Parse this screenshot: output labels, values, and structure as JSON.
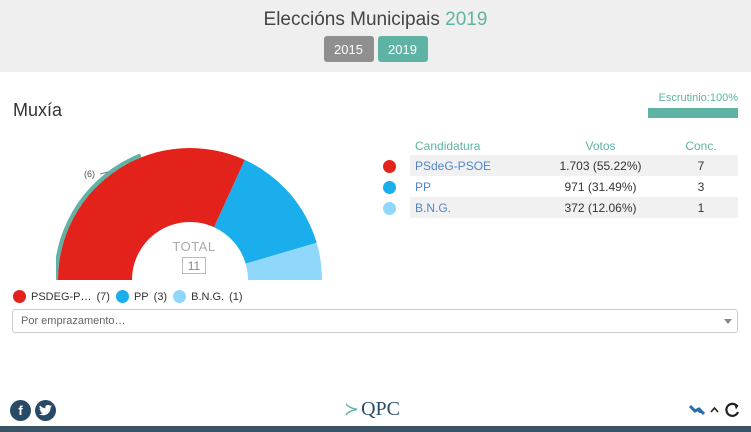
{
  "header": {
    "title_prefix": "Eleccións Municipais",
    "title_year": "2019",
    "years": [
      "2015",
      "2019"
    ],
    "active_year": "2019"
  },
  "municipality": "Muxía",
  "scrutiny": {
    "label": "Escrutinio:100%",
    "percent": 100
  },
  "chart_data": {
    "type": "pie",
    "subtype": "half-donut",
    "center_label": "TOTAL",
    "center_value": "11",
    "other_label": "(6)",
    "series": [
      {
        "name": "PSdeG-PSOE",
        "value": 7,
        "color": "#e3231b"
      },
      {
        "name": "PP",
        "value": 3,
        "color": "#1aaeed"
      },
      {
        "name": "B.N.G.",
        "value": 1,
        "color": "#8fd8fb"
      }
    ],
    "outer_ring_color": "#5fb3a4"
  },
  "legend": [
    {
      "label": "PSDEG-P…",
      "count": "(7)",
      "color": "#e3231b"
    },
    {
      "label": "PP",
      "count": "(3)",
      "color": "#1aaeed"
    },
    {
      "label": "B.N.G.",
      "count": "(1)",
      "color": "#8fd8fb"
    }
  ],
  "table": {
    "headers": {
      "party": "Candidatura",
      "votes": "Votos",
      "seats": "Conc."
    },
    "rows": [
      {
        "party": "PSdeG-PSOE",
        "votes": "1.703 (55.22%)",
        "seats": "7",
        "color": "#e3231b"
      },
      {
        "party": "PP",
        "votes": "971 (31.49%)",
        "seats": "3",
        "color": "#1aaeed"
      },
      {
        "party": "B.N.G.",
        "votes": "372 (12.06%)",
        "seats": "1",
        "color": "#8fd8fb"
      }
    ]
  },
  "select": {
    "placeholder": "Por emprazamento…"
  },
  "footer": {
    "logo": "QPC",
    "icons": [
      "facebook-icon",
      "twitter-icon",
      "satellite-icon",
      "chevron-up-icon",
      "refresh-icon"
    ]
  }
}
